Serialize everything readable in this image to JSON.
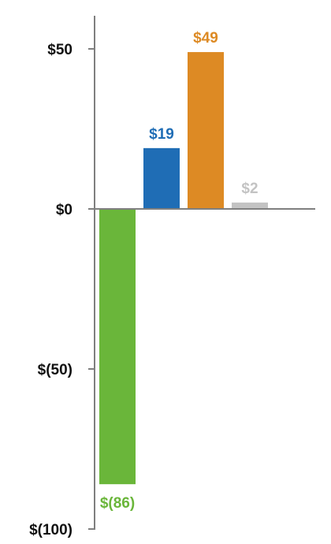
{
  "chart_data": {
    "type": "bar",
    "title": "",
    "xlabel": "",
    "ylabel": "",
    "ylim": [
      -100,
      50
    ],
    "y_ticks": [
      {
        "value": 50,
        "label": "$50"
      },
      {
        "value": 0,
        "label": "$0"
      },
      {
        "value": -50,
        "label": "$(50)"
      },
      {
        "value": -100,
        "label": "$(100)"
      }
    ],
    "bars": [
      {
        "value": -86,
        "label": "$(86)",
        "color": "#6ab63a"
      },
      {
        "value": 19,
        "label": "$19",
        "color": "#1f6db5"
      },
      {
        "value": 49,
        "label": "$49",
        "color": "#dd8a24"
      },
      {
        "value": 2,
        "label": "$2",
        "color": "#c3c3c3"
      }
    ],
    "grid": false,
    "legend": "none"
  }
}
